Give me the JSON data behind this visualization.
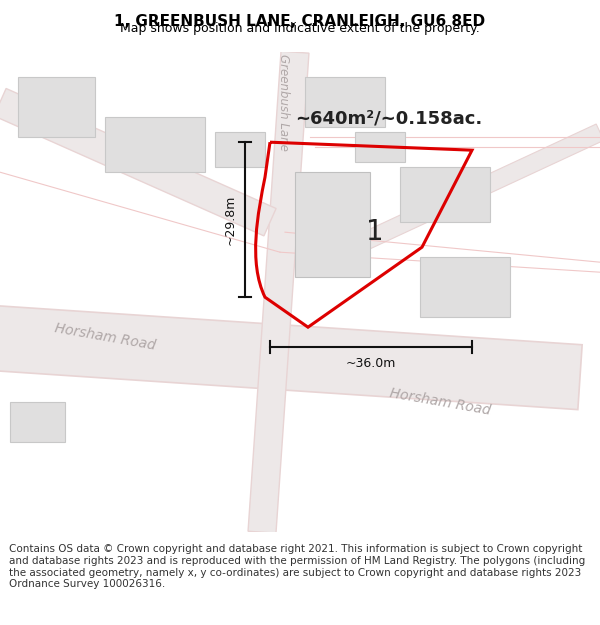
{
  "title": "1, GREENBUSH LANE, CRANLEIGH, GU6 8ED",
  "subtitle": "Map shows position and indicative extent of the property.",
  "footer": "Contains OS data © Crown copyright and database right 2021. This information is subject to Crown copyright and database rights 2023 and is reproduced with the permission of HM Land Registry. The polygons (including the associated geometry, namely x, y co-ordinates) are subject to Crown copyright and database rights 2023 Ordnance Survey 100026316.",
  "area_label": "~640m²/~0.158ac.",
  "label_1": "1",
  "dim_height": "~29.8m",
  "dim_width": "~36.0m",
  "road_label_horsham": "Horsham Road",
  "road_label_greenbush": "Greenbush Lane",
  "map_bg": "#f8f7f7",
  "road_fill_color": "#ede8e8",
  "road_outline_color": "#e0d0d0",
  "road_line_color": "#e8d4d4",
  "plot_border_color": "#dd0000",
  "building_fill": "#e0dfdf",
  "building_edge": "#c8c8c8",
  "dim_line_color": "#111111",
  "title_fontsize": 11,
  "subtitle_fontsize": 9,
  "footer_fontsize": 7.5,
  "road_text_color": "#b0a8a8",
  "label_color": "#222222"
}
